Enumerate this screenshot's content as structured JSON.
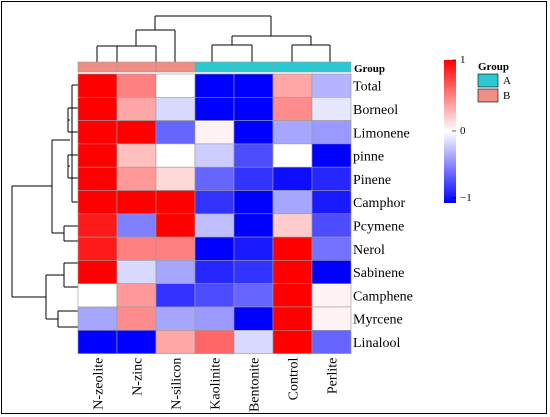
{
  "chart_data": {
    "type": "heatmap",
    "rows": [
      "Total",
      "Borneol",
      "Limonene",
      "pinne",
      "Pinene",
      "Camphor",
      "Pcymene",
      "Nerol",
      "Sabinene",
      "Camphene",
      "Myrcene",
      "Linalool"
    ],
    "columns": [
      "N-zeolite",
      "N-zinc",
      "N-silicon",
      "Kaolinite",
      "Bentonite",
      "Control",
      "Perlite"
    ],
    "values": [
      [
        1.0,
        0.5,
        0.0,
        -1.0,
        -1.0,
        0.35,
        -0.3
      ],
      [
        1.0,
        0.35,
        -0.15,
        -1.0,
        -1.0,
        0.45,
        -0.1
      ],
      [
        1.0,
        1.0,
        -0.6,
        0.05,
        -1.0,
        -0.35,
        -0.4
      ],
      [
        1.0,
        0.25,
        0.0,
        -0.2,
        -0.7,
        0.0,
        -1.0
      ],
      [
        1.0,
        0.4,
        0.15,
        -0.6,
        -0.8,
        -0.95,
        -0.85
      ],
      [
        1.0,
        1.0,
        1.0,
        -0.8,
        -1.0,
        -0.35,
        -0.9
      ],
      [
        0.9,
        -0.5,
        1.0,
        -0.25,
        -1.0,
        0.2,
        -0.7
      ],
      [
        0.9,
        0.5,
        0.5,
        -1.0,
        -0.9,
        1.0,
        -0.55
      ],
      [
        1.0,
        -0.15,
        -0.35,
        -0.85,
        -0.8,
        1.0,
        -1.0
      ],
      [
        0.0,
        0.4,
        -0.8,
        -0.7,
        -0.6,
        1.0,
        0.05
      ],
      [
        -0.35,
        0.45,
        -0.35,
        -0.4,
        -1.0,
        1.0,
        0.05
      ],
      [
        -1.0,
        -1.0,
        0.35,
        0.6,
        -0.15,
        1.0,
        -0.6
      ]
    ],
    "color_scale": {
      "low": "#0000FF",
      "mid": "#FFFFFF",
      "high": "#FF0000",
      "min": -1,
      "max": 1
    },
    "legend_ticks": [
      "1",
      "0",
      "−1"
    ],
    "annotation": {
      "title": "Group",
      "row_label": "Group",
      "column_groups": [
        "B",
        "B",
        "B",
        "A",
        "A",
        "A",
        "A"
      ],
      "legend": [
        {
          "label": "A",
          "color": "#2CC8D2"
        },
        {
          "label": "B",
          "color": "#EE8E84"
        }
      ]
    },
    "row_dendrogram": true,
    "column_dendrogram": true
  }
}
